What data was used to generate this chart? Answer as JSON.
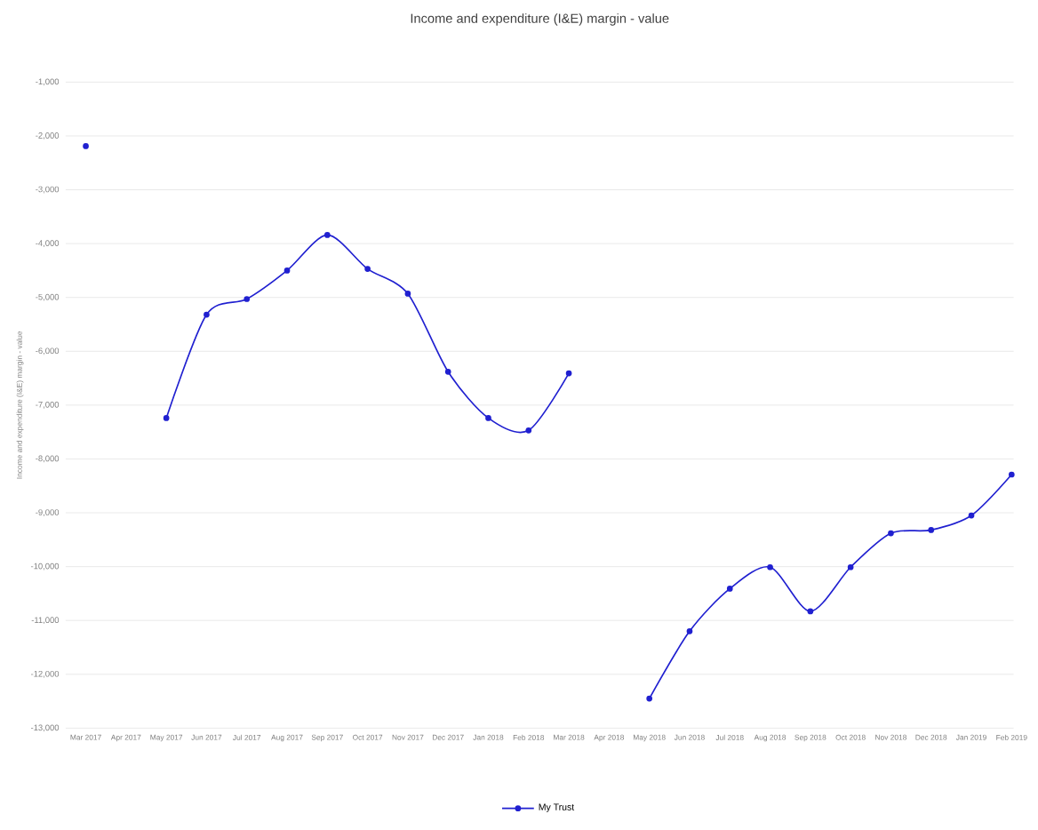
{
  "chart_data": {
    "type": "line",
    "title": "Income and expenditure (I&E) margin - value",
    "ylabel": "Income and expenditure (I&E) margin - value",
    "categories": [
      "Mar 2017",
      "Apr 2017",
      "May 2017",
      "Jun 2017",
      "Jul 2017",
      "Aug 2017",
      "Sep 2017",
      "Oct 2017",
      "Nov 2017",
      "Dec 2017",
      "Jan 2018",
      "Feb 2018",
      "Mar 2018",
      "Apr 2018",
      "May 2018",
      "Jun 2018",
      "Jul 2018",
      "Aug 2018",
      "Sep 2018",
      "Oct 2018",
      "Nov 2018",
      "Dec 2018",
      "Jan 2019",
      "Feb 2019"
    ],
    "series": [
      {
        "name": "My Trust",
        "color": "#2020d0",
        "values": [
          -2190,
          null,
          -7240,
          -5320,
          -5030,
          -4500,
          -3840,
          -4470,
          -4930,
          -6380,
          -7240,
          -7470,
          -6410,
          null,
          -12450,
          -11200,
          -10410,
          -10010,
          -10830,
          -10010,
          -9380,
          -9320,
          -9050,
          -8290
        ]
      }
    ],
    "ylim": [
      -13000,
      -1000
    ],
    "yticks": [
      {
        "value": -1000,
        "label": "-1,000"
      },
      {
        "value": -2000,
        "label": "-2,000"
      },
      {
        "value": -3000,
        "label": "-3,000"
      },
      {
        "value": -4000,
        "label": "-4,000"
      },
      {
        "value": -5000,
        "label": "-5,000"
      },
      {
        "value": -6000,
        "label": "-6,000"
      },
      {
        "value": -7000,
        "label": "-7,000"
      },
      {
        "value": -8000,
        "label": "-8,000"
      },
      {
        "value": -9000,
        "label": "-9,000"
      },
      {
        "value": -10000,
        "label": "-10,000"
      },
      {
        "value": -11000,
        "label": "-11,000"
      },
      {
        "value": -12000,
        "label": "-12,000"
      },
      {
        "value": -13000,
        "label": "-13,000"
      }
    ],
    "grid": "y",
    "legend": "bottom",
    "marker": "circle",
    "line_style": "solid"
  }
}
